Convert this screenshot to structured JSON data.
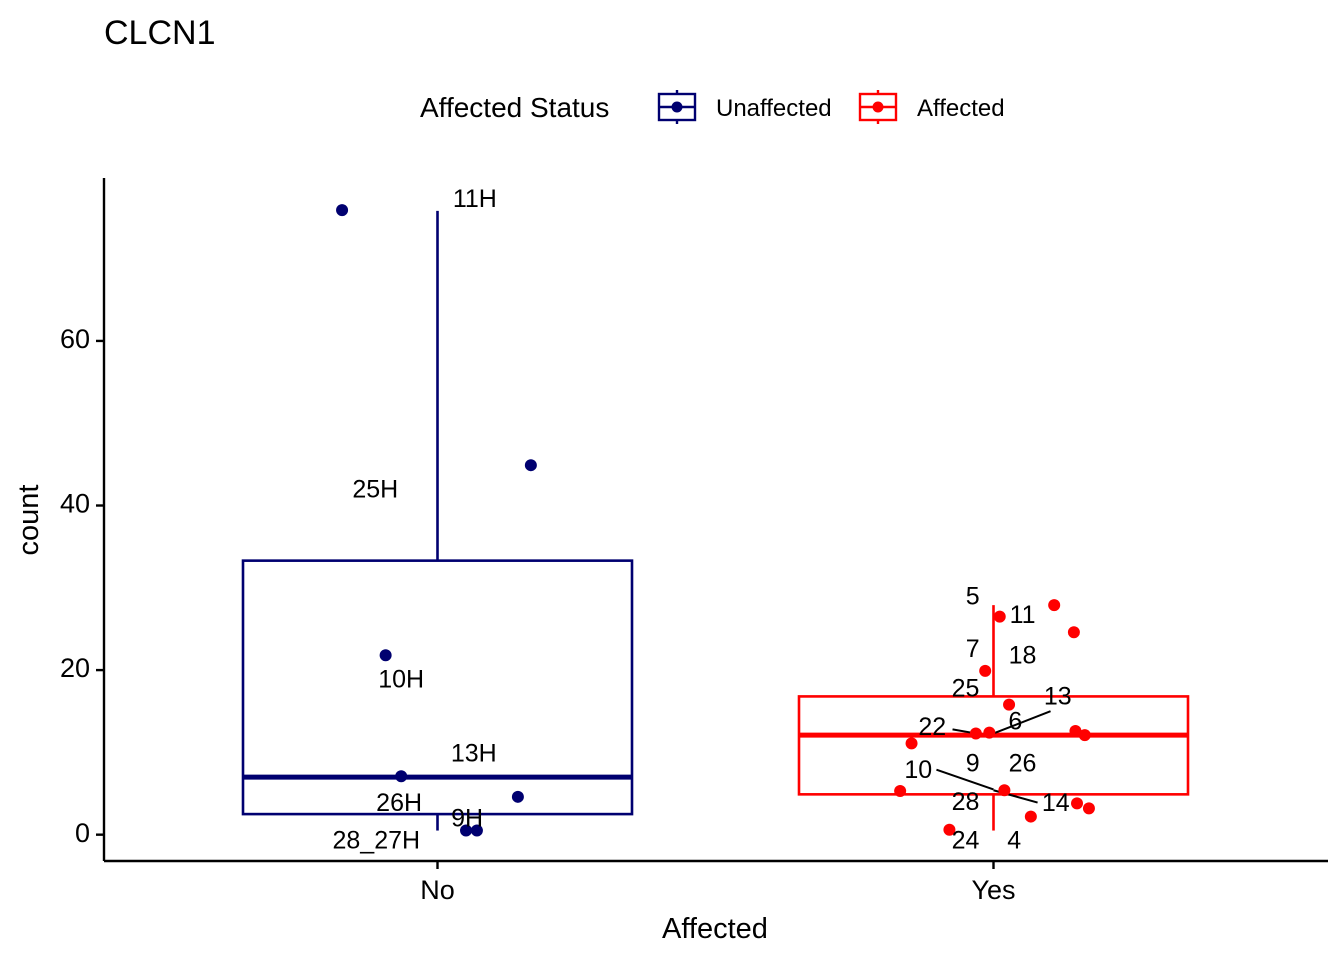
{
  "chart_data": {
    "type": "boxplot",
    "title": "CLCN1",
    "xlabel": "Affected",
    "ylabel": "count",
    "ylim": [
      -3.2,
      79.8
    ],
    "yticks": [
      0,
      20,
      40,
      60
    ],
    "categories": [
      "No",
      "Yes"
    ],
    "legend": {
      "title": "Affected Status",
      "position": "top",
      "entries": [
        {
          "label": "Unaffected",
          "color": "#000070"
        },
        {
          "label": "Affected",
          "color": "#ff0000"
        }
      ]
    },
    "series": [
      {
        "name": "Unaffected",
        "category": "No",
        "color": "#000070",
        "box": {
          "whisker_low": 0.5,
          "q1": 2.5,
          "median": 7.0,
          "q3": 33.3,
          "whisker_high": 75.8
        },
        "points": [
          {
            "x": -0.184,
            "y": 75.9
          },
          {
            "x": 0.18,
            "y": 44.9
          },
          {
            "x": -0.1,
            "y": 21.8
          },
          {
            "x": -0.07,
            "y": 7.1
          },
          {
            "x": 0.155,
            "y": 4.6
          },
          {
            "x": 0.055,
            "y": 0.5
          },
          {
            "x": 0.076,
            "y": 0.5
          }
        ],
        "labels": [
          {
            "text": "11H",
            "x": 0.072,
            "y": 77.1
          },
          {
            "text": "25H",
            "x": -0.12,
            "y": 41.8
          },
          {
            "text": "10H",
            "x": -0.07,
            "y": 18.7
          },
          {
            "text": "13H",
            "x": 0.07,
            "y": 9.7
          },
          {
            "text": "26H",
            "x": -0.074,
            "y": 3.7
          },
          {
            "text": "9H",
            "x": 0.057,
            "y": 1.8
          },
          {
            "text": "28_27H",
            "x": -0.118,
            "y": -0.9
          }
        ]
      },
      {
        "name": "Affected",
        "category": "Yes",
        "color": "#ff0000",
        "box": {
          "whisker_low": 0.5,
          "q1": 4.9,
          "median": 12.1,
          "q3": 16.8,
          "whisker_high": 27.9
        },
        "points": [
          {
            "x": 0.117,
            "y": 27.9
          },
          {
            "x": 0.012,
            "y": 26.5
          },
          {
            "x": 0.155,
            "y": 24.6
          },
          {
            "x": -0.016,
            "y": 19.9
          },
          {
            "x": 0.03,
            "y": 15.8
          },
          {
            "x": -0.008,
            "y": 12.4
          },
          {
            "x": -0.034,
            "y": 12.3
          },
          {
            "x": 0.158,
            "y": 12.6
          },
          {
            "x": 0.176,
            "y": 12.1
          },
          {
            "x": -0.158,
            "y": 11.1
          },
          {
            "x": 0.021,
            "y": 5.4
          },
          {
            "x": -0.18,
            "y": 5.3
          },
          {
            "x": 0.161,
            "y": 3.8
          },
          {
            "x": 0.184,
            "y": 3.2
          },
          {
            "x": 0.072,
            "y": 2.2
          },
          {
            "x": -0.085,
            "y": 0.6
          }
        ],
        "labels": [
          {
            "text": "5",
            "x": -0.04,
            "y": 28.8
          },
          {
            "text": "11",
            "x": 0.056,
            "y": 26.5
          },
          {
            "text": "7",
            "x": -0.04,
            "y": 22.4
          },
          {
            "text": "18",
            "x": 0.056,
            "y": 21.6
          },
          {
            "text": "25",
            "x": -0.054,
            "y": 17.6
          },
          {
            "text": "13",
            "x": 0.124,
            "y": 16.6
          },
          {
            "text": "6",
            "x": 0.042,
            "y": 13.6
          },
          {
            "text": "22",
            "x": -0.118,
            "y": 12.9
          },
          {
            "text": "9",
            "x": -0.04,
            "y": 8.5
          },
          {
            "text": "26",
            "x": 0.056,
            "y": 8.5
          },
          {
            "text": "10",
            "x": -0.145,
            "y": 7.7
          },
          {
            "text": "28",
            "x": -0.054,
            "y": 3.8
          },
          {
            "text": "14",
            "x": 0.12,
            "y": 3.7
          },
          {
            "text": "24",
            "x": -0.054,
            "y": -0.9
          },
          {
            "text": "4",
            "x": 0.04,
            "y": -0.9
          }
        ],
        "connectors": [
          {
            "from": [
              -0.079,
              12.8
            ],
            "to": [
              -0.034,
              12.3
            ]
          },
          {
            "from": [
              0.11,
              15.0
            ],
            "to": [
              0.0,
              12.3
            ]
          },
          {
            "from": [
              -0.11,
              7.9
            ],
            "to": [
              0.0,
              5.5
            ]
          },
          {
            "from": [
              0.0,
              5.4
            ],
            "to": [
              0.085,
              3.9
            ]
          }
        ]
      }
    ]
  }
}
